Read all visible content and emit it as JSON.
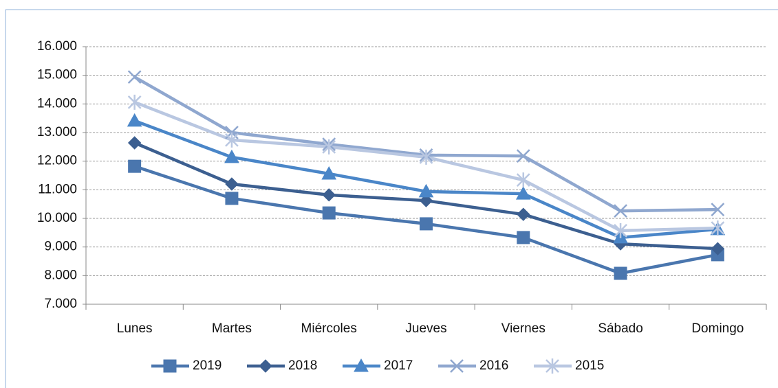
{
  "chart_data": {
    "type": "line",
    "categories": [
      "Lunes",
      "Martes",
      "Miércoles",
      "Jueves",
      "Viernes",
      "Sábado",
      "Domingo"
    ],
    "series": [
      {
        "name": "2019",
        "color": "#4a76ae",
        "marker": "square",
        "values": [
          11820,
          10700,
          10190,
          9810,
          9330,
          8080,
          8730
        ]
      },
      {
        "name": "2018",
        "color": "#3c5f90",
        "marker": "diamond",
        "values": [
          12640,
          11200,
          10820,
          10620,
          10140,
          9110,
          8940
        ]
      },
      {
        "name": "2017",
        "color": "#4a86c8",
        "marker": "triangle",
        "values": [
          13410,
          12140,
          11560,
          10940,
          10860,
          9330,
          9620
        ]
      },
      {
        "name": "2016",
        "color": "#8fa7cf",
        "marker": "x",
        "values": [
          14940,
          13000,
          12590,
          12210,
          12180,
          10260,
          10310
        ]
      },
      {
        "name": "2015",
        "color": "#b9c7e1",
        "marker": "asterisk",
        "values": [
          14060,
          12740,
          12500,
          12140,
          11340,
          9570,
          9660
        ]
      }
    ],
    "ylim": [
      7000,
      16000
    ],
    "yticks": [
      {
        "value": 7000,
        "label": "7.000"
      },
      {
        "value": 8000,
        "label": "8.000"
      },
      {
        "value": 9000,
        "label": "9.000"
      },
      {
        "value": 10000,
        "label": "10.000"
      },
      {
        "value": 11000,
        "label": "11.000"
      },
      {
        "value": 12000,
        "label": "12.000"
      },
      {
        "value": 13000,
        "label": "13.000"
      },
      {
        "value": 14000,
        "label": "14.000"
      },
      {
        "value": 15000,
        "label": "15.000"
      },
      {
        "value": 16000,
        "label": "16.000"
      }
    ],
    "grid": true,
    "legend": "bottom"
  }
}
